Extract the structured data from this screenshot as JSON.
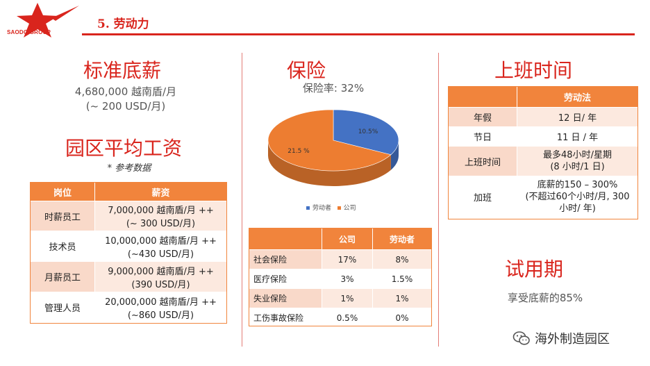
{
  "header": {
    "logo_text": "SAODO GROUP",
    "title": "5. 劳动力"
  },
  "salary": {
    "title": "标准底薪",
    "amount_vnd": "4,680,000 越南盾/月",
    "amount_usd": "(~ 200 USD/月)"
  },
  "park_wage": {
    "title": "园区平均工资",
    "note": "* 参考数据",
    "headers": [
      "岗位",
      "薪资"
    ],
    "rows": [
      {
        "role": "时薪员工",
        "pay1": "7,000,000 越南盾/月 ++",
        "pay2": "(~ 300 USD/月)"
      },
      {
        "role": "技术员",
        "pay1": "10,000,000 越南盾/月 ++",
        "pay2": "(~430 USD/月)"
      },
      {
        "role": "月薪员工",
        "pay1": "9,000,000 越南盾/月 ++",
        "pay2": "(390 USD/月)"
      },
      {
        "role": "管理人员",
        "pay1": "20,000,000 越南盾/月 ++",
        "pay2": "(~860 USD/月)"
      }
    ]
  },
  "insurance": {
    "title": "保险",
    "rate": "保险率: 32%",
    "headers": [
      "",
      "公司",
      "劳动者"
    ],
    "rows": [
      [
        "社会保险",
        "17%",
        "8%"
      ],
      [
        "医疗保险",
        "3%",
        "1.5%"
      ],
      [
        "失业保险",
        "1%",
        "1%"
      ],
      [
        "工伤事故保险",
        "0.5%",
        "0%"
      ]
    ]
  },
  "chart_data": {
    "type": "pie",
    "title": "",
    "labels": [
      "劳动者",
      "公司"
    ],
    "values": [
      10.5,
      21.5
    ],
    "value_labels": [
      "10.5%",
      "21.5 %"
    ],
    "colors": [
      "#4472c4",
      "#ed7d31"
    ],
    "legend": "bottom"
  },
  "work_time": {
    "title": "上班时间",
    "header": "劳动法",
    "rows": [
      {
        "label": "年假",
        "lines": [
          "12 日/ 年"
        ]
      },
      {
        "label": "节日",
        "lines": [
          "11 日 / 年"
        ]
      },
      {
        "label": "上班时间",
        "lines": [
          "最多48小时/星期",
          "(8 小时/1 日)"
        ]
      },
      {
        "label": "加班",
        "lines": [
          "底薪的150 – 300%",
          "(不超过60个小时/月, 300",
          "小时/ 年)"
        ]
      }
    ]
  },
  "probation": {
    "title": "试用期",
    "text": "享受底薪的85%"
  },
  "watermark": {
    "text": "海外制造园区",
    "icon": "wechat-icon"
  }
}
